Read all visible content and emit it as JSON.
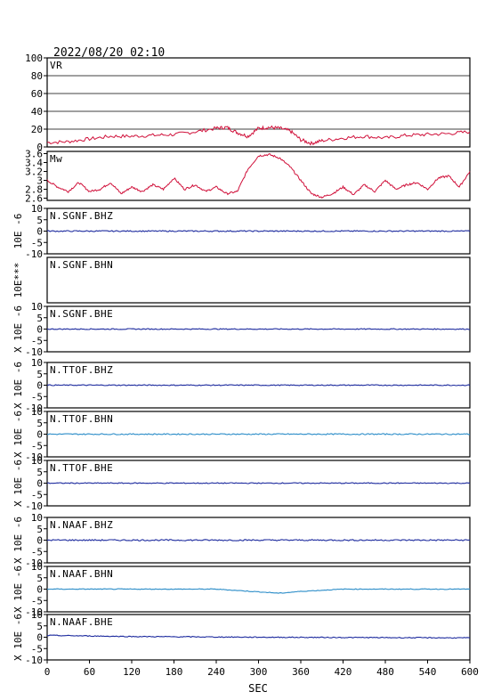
{
  "title": "2022/08/20 02:10",
  "xlabel": "SEC",
  "colors": {
    "frame": "#000000",
    "vr_line": "#d0103a",
    "mw_line": "#d0103a",
    "trace_dark": "#1c2a9e",
    "trace_light": "#2a8cc8",
    "grid": "#000000"
  },
  "chart_data": {
    "type": "line",
    "x_range": [
      0,
      600
    ],
    "x_ticks": [
      "0",
      "60",
      "120",
      "180",
      "240",
      "300",
      "360",
      "420",
      "480",
      "540",
      "600"
    ],
    "panels": [
      {
        "name": "VR",
        "ylabel": "",
        "ylim": [
          0,
          100
        ],
        "yticks": [
          "0",
          "20",
          "40",
          "60",
          "80",
          "100"
        ],
        "grid": true,
        "color_key": "vr_line",
        "x": [
          0,
          30,
          60,
          90,
          120,
          150,
          180,
          210,
          240,
          255,
          270,
          285,
          300,
          315,
          330,
          345,
          360,
          375,
          390,
          420,
          450,
          480,
          510,
          540,
          570,
          600
        ],
        "y": [
          5,
          6,
          9,
          12,
          12,
          13,
          14,
          17,
          21,
          22,
          16,
          12,
          21,
          22,
          21,
          18,
          8,
          4,
          7,
          10,
          12,
          10,
          13,
          14,
          15,
          17
        ]
      },
      {
        "name": "Mw",
        "ylabel": "",
        "ylim": [
          2.55,
          3.65
        ],
        "yticks": [
          "2.6",
          "2.8",
          "3",
          "3.2",
          "3.4",
          "3.6"
        ],
        "grid": false,
        "color_key": "mw_line",
        "x": [
          0,
          15,
          30,
          45,
          60,
          75,
          90,
          105,
          120,
          135,
          150,
          165,
          180,
          195,
          210,
          225,
          240,
          255,
          270,
          285,
          300,
          315,
          330,
          345,
          360,
          375,
          390,
          405,
          420,
          435,
          450,
          465,
          480,
          495,
          510,
          525,
          540,
          555,
          570,
          585,
          600
        ],
        "y": [
          3.0,
          2.85,
          2.75,
          2.95,
          2.75,
          2.8,
          2.95,
          2.7,
          2.85,
          2.75,
          2.9,
          2.8,
          3.05,
          2.8,
          2.9,
          2.75,
          2.85,
          2.7,
          2.75,
          3.25,
          3.55,
          3.58,
          3.5,
          3.3,
          3.0,
          2.7,
          2.62,
          2.7,
          2.85,
          2.68,
          2.9,
          2.75,
          3.0,
          2.8,
          2.9,
          2.95,
          2.8,
          3.05,
          3.1,
          2.85,
          3.2
        ]
      },
      {
        "name": "N.SGNF.BHZ",
        "ylabel": "10E -6",
        "ylim": [
          -10,
          10
        ],
        "yticks": [
          "-10",
          "-5",
          "0",
          "5",
          "10"
        ],
        "color_key": "trace_dark",
        "baseline": 0,
        "noise": 0.25
      },
      {
        "name": "N.SGNF.BHN",
        "ylabel": "10E***",
        "ylim": null,
        "yticks": [],
        "color_key": "trace_dark",
        "baseline": null,
        "noise": 0
      },
      {
        "name": "N.SGNF.BHE",
        "ylabel": "X 10E -6",
        "ylim": [
          -10,
          10
        ],
        "yticks": [
          "-10",
          "-5",
          "0",
          "5",
          "10"
        ],
        "color_key": "trace_dark",
        "baseline": 0,
        "noise": 0.2
      },
      {
        "name": "N.TTOF.BHZ",
        "ylabel": "X 10E -6",
        "ylim": [
          -10,
          10
        ],
        "yticks": [
          "-10",
          "-5",
          "0",
          "5",
          "10"
        ],
        "color_key": "trace_dark",
        "baseline": 0,
        "noise": 0.2
      },
      {
        "name": "N.TTOF.BHN",
        "ylabel": "X 10E -6",
        "ylim": [
          -10,
          10
        ],
        "yticks": [
          "-10",
          "-5",
          "0",
          "5",
          "10"
        ],
        "color_key": "trace_light",
        "baseline": 0,
        "noise": 0.25
      },
      {
        "name": "N.TTOF.BHE",
        "ylabel": "X 10E -6",
        "ylim": [
          -10,
          10
        ],
        "yticks": [
          "-10",
          "-5",
          "0",
          "5",
          "10"
        ],
        "color_key": "trace_dark",
        "baseline": 0,
        "noise": 0.2
      },
      {
        "name": "N.NAAF.BHZ",
        "ylabel": "X 10E -6",
        "ylim": [
          -10,
          10
        ],
        "yticks": [
          "-10",
          "-5",
          "0",
          "5",
          "10"
        ],
        "color_key": "trace_dark",
        "baseline": 0,
        "noise": 0.3
      },
      {
        "name": "N.NAAF.BHN",
        "ylabel": "X 10E -6",
        "ylim": [
          -10,
          10
        ],
        "yticks": [
          "-10",
          "-5",
          "0",
          "5",
          "10"
        ],
        "color_key": "trace_light",
        "baseline": 0,
        "noise": 0.15,
        "drift": [
          [
            0,
            0
          ],
          [
            240,
            0
          ],
          [
            300,
            -1.2
          ],
          [
            330,
            -1.8
          ],
          [
            360,
            -1.0
          ],
          [
            420,
            0
          ],
          [
            600,
            0
          ]
        ]
      },
      {
        "name": "N.NAAF.BHE",
        "ylabel": "X 10E -6",
        "ylim": [
          -10,
          10
        ],
        "yticks": [
          "-10",
          "-5",
          "0",
          "5",
          "10"
        ],
        "color_key": "trace_dark",
        "baseline": 0,
        "noise": 0.2,
        "drift": [
          [
            0,
            0.8
          ],
          [
            120,
            0.3
          ],
          [
            300,
            0
          ],
          [
            600,
            -0.3
          ]
        ]
      }
    ]
  }
}
